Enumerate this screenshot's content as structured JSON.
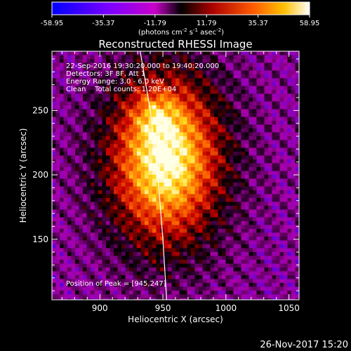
{
  "chart_data": {
    "type": "heatmap",
    "title": "Reconstructed RHESSI Image",
    "xlabel": "Heliocentric X (arcsec)",
    "ylabel": "Heliocentric Y (arcsec)",
    "xlim": [
      862,
      1058
    ],
    "ylim": [
      103,
      296
    ],
    "x_ticks": [
      900,
      950,
      1000,
      1050
    ],
    "y_ticks": [
      150,
      200,
      250
    ],
    "colorbar": {
      "range": [
        -58.95,
        58.95
      ],
      "tick_labels": [
        "-58.95",
        "-35.37",
        "-11.79",
        "11.79",
        "35.37",
        "58.95"
      ],
      "units_prefix": "(photons cm",
      "units_sup1": "-2",
      "units_mid1": " s",
      "units_sup2": "-1",
      "units_mid2": " asec",
      "units_sup3": "-2",
      "units_suffix": ")"
    },
    "annotations": {
      "time_range": "22-Sep-2016 19:30:20.000 to 19:40:20.000",
      "detectors": "Detectors: 3F 8F, Att 1",
      "energy": "Energy Range: 3.0 - 6.0 keV",
      "method_counts": "Clean    Total counts: 1.20E+04",
      "peak": "Position of Peak = [945,247]"
    },
    "peak_position": [
      945,
      247
    ],
    "source_center": [
      952,
      212
    ],
    "limb_curve": [
      [
        932,
        296
      ],
      [
        940,
        250
      ],
      [
        946,
        200
      ],
      [
        950,
        150
      ],
      [
        953,
        103
      ]
    ],
    "footer_date": "26-Nov-2017 15:20"
  }
}
